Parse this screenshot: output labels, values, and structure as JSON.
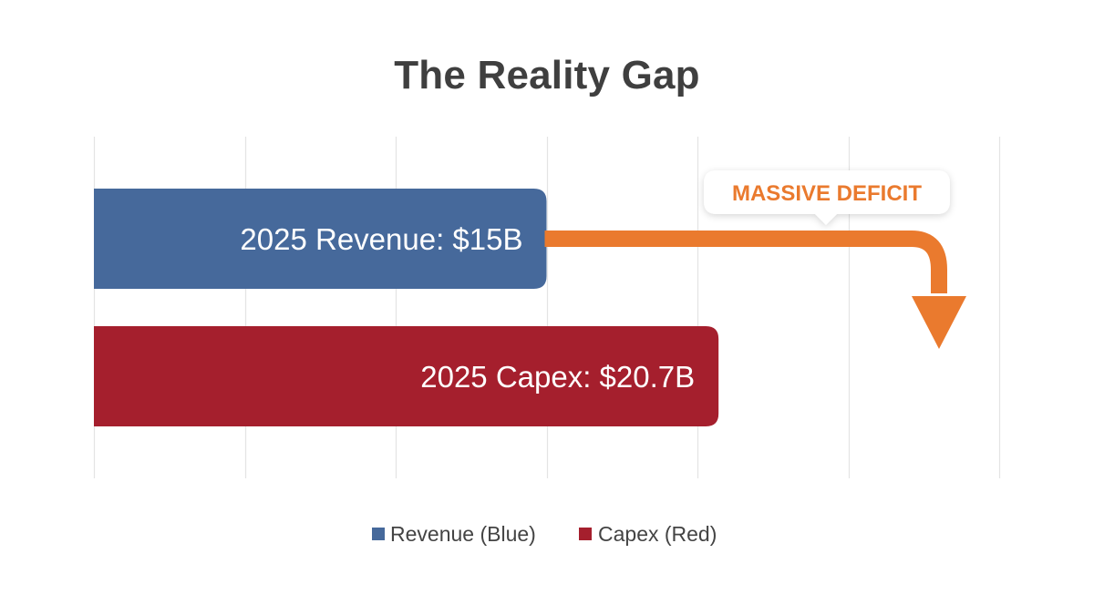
{
  "chart_data": {
    "type": "bar",
    "orientation": "horizontal",
    "title": "The Reality Gap",
    "categories": [
      "2025 Revenue",
      "2025 Capex"
    ],
    "values": [
      15,
      20.7
    ],
    "unit": "$B",
    "xlim": [
      0,
      30
    ],
    "grid": true,
    "legend_position": "bottom",
    "bar_labels": [
      "2025 Revenue: $15B",
      "2025 Capex: $20.7B"
    ],
    "legend": [
      {
        "label": "Revenue (Blue)",
        "color": "#46699b"
      },
      {
        "label": "Capex (Red)",
        "color": "#a51f2d"
      }
    ],
    "annotation": {
      "text": "MASSIVE DEFICIT",
      "color": "#ea7a2e"
    },
    "colors": {
      "revenue": "#46699b",
      "capex": "#a51f2d",
      "arrow": "#ea7a2e",
      "grid": "#e4e4e4"
    }
  }
}
